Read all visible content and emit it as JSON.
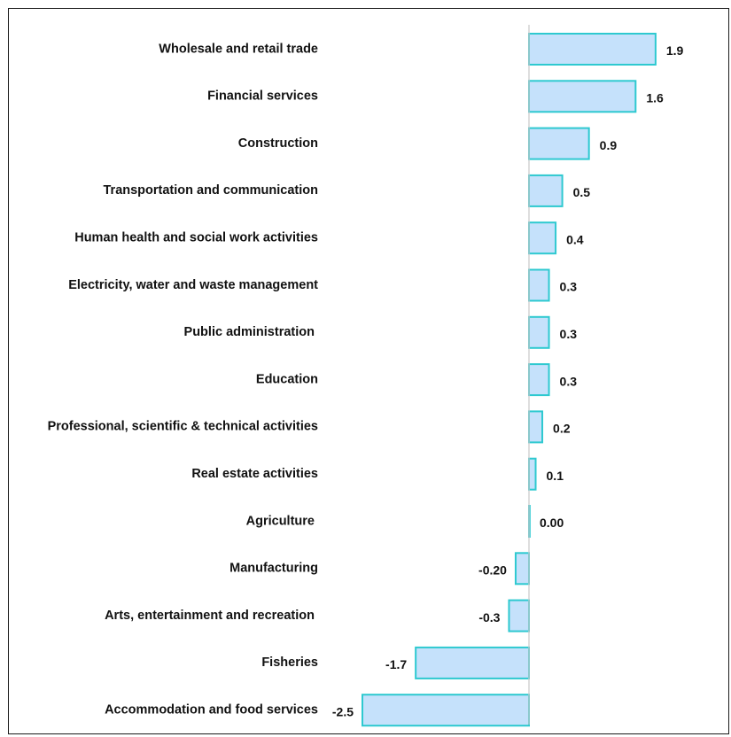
{
  "chart_data": {
    "type": "bar",
    "orientation": "horizontal",
    "categories": [
      "Wholesale and retail trade",
      "Financial services",
      "Construction",
      "Transportation and communication",
      "Human health and social work activities",
      "Electricity, water and waste management",
      "Public administration ",
      "Education",
      "Professional, scientific & technical activities",
      "Real estate activities",
      "Agriculture ",
      "Manufacturing",
      "Arts, entertainment and recreation ",
      "Fisheries",
      "Accommodation and food services"
    ],
    "values": [
      1.9,
      1.6,
      0.9,
      0.5,
      0.4,
      0.3,
      0.3,
      0.3,
      0.2,
      0.1,
      0.0,
      -0.2,
      -0.3,
      -1.7,
      -2.5
    ],
    "value_labels": [
      "1.9",
      "1.6",
      "0.9",
      "0.5",
      "0.4",
      "0.3",
      "0.3",
      "0.3",
      "0.2",
      "0.1",
      "0.00",
      "-0.20",
      "-0.3",
      "-1.7",
      "-2.5"
    ],
    "title": "",
    "xlabel": "",
    "ylabel": "",
    "xlim": [
      -2.5,
      1.9
    ],
    "grid": false,
    "legend": "none",
    "colors": {
      "bar_fill": "#c5e1fb",
      "bar_stroke": "#2ec9d0",
      "axis": "#c9c9c9",
      "text": "#111111"
    }
  }
}
